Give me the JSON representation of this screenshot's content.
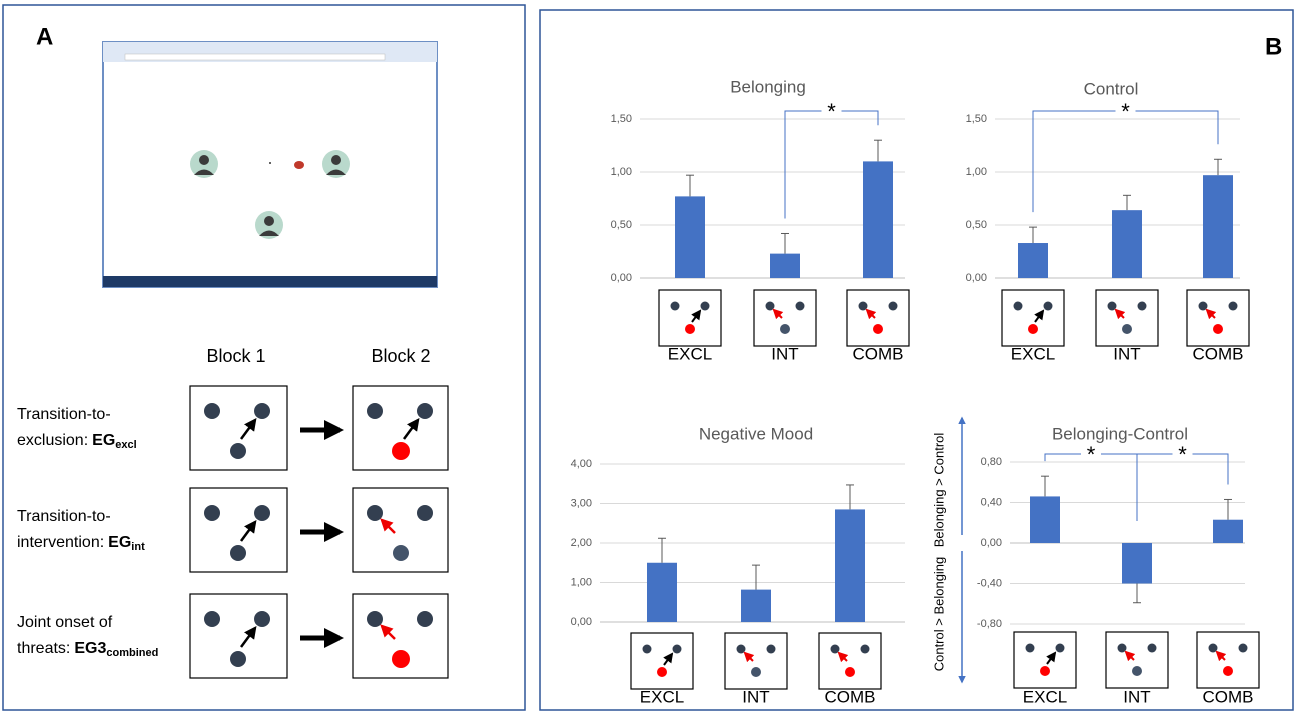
{
  "panel_a": {
    "label": "A",
    "block_headers": [
      "Block 1",
      "Block 2"
    ],
    "conditions": [
      {
        "lines": [
          "Transition-to-",
          "exclusion:"
        ],
        "code": "EG",
        "subscript": "excl"
      },
      {
        "lines": [
          "Transition-to-",
          "intervention:"
        ],
        "code": "EG",
        "subscript": "int"
      },
      {
        "lines": [
          "Joint onset of",
          "threats:"
        ],
        "code": "EG3",
        "subscript": "combined"
      }
    ]
  },
  "panel_b": {
    "label": "B"
  },
  "chart_data": [
    {
      "type": "bar",
      "title": "Belonging",
      "categories": [
        "EXCL",
        "INT",
        "COMB"
      ],
      "values": [
        0.77,
        0.23,
        1.1
      ],
      "errors": [
        0.2,
        0.19,
        0.2
      ],
      "color": "#4472c4",
      "ylim": [
        0,
        1.5
      ],
      "yticks": [
        {
          "value": 0,
          "label": "0,00"
        },
        {
          "value": 0.5,
          "label": "0,50"
        },
        {
          "value": 1,
          "label": "1,00"
        },
        {
          "value": 1.5,
          "label": "1,50"
        }
      ],
      "grid": true,
      "significance": [
        {
          "pair": [
            1,
            2
          ],
          "label": "*"
        }
      ]
    },
    {
      "type": "bar",
      "title": "Control",
      "categories": [
        "EXCL",
        "INT",
        "COMB"
      ],
      "values": [
        0.33,
        0.64,
        0.97
      ],
      "errors": [
        0.15,
        0.14,
        0.15
      ],
      "color": "#4472c4",
      "ylim": [
        0,
        1.5
      ],
      "yticks": [
        {
          "value": 0,
          "label": "0,00"
        },
        {
          "value": 0.5,
          "label": "0,50"
        },
        {
          "value": 1,
          "label": "1,00"
        },
        {
          "value": 1.5,
          "label": "1,50"
        }
      ],
      "grid": true,
      "significance": [
        {
          "pair": [
            0,
            2
          ],
          "label": "*"
        }
      ]
    },
    {
      "type": "bar",
      "title": "Negative Mood",
      "categories": [
        "EXCL",
        "INT",
        "COMB"
      ],
      "values": [
        1.5,
        0.82,
        2.85
      ],
      "errors": [
        0.62,
        0.62,
        0.62
      ],
      "color": "#4472c4",
      "ylim": [
        0,
        4
      ],
      "yticks": [
        {
          "value": 0,
          "label": "0,00"
        },
        {
          "value": 1,
          "label": "1,00"
        },
        {
          "value": 2,
          "label": "2,00"
        },
        {
          "value": 3,
          "label": "3,00"
        },
        {
          "value": 4,
          "label": "4,00"
        }
      ],
      "grid": true,
      "significance": []
    },
    {
      "type": "bar",
      "title": "Belonging-Control",
      "categories": [
        "EXCL",
        "INT",
        "COMB"
      ],
      "values": [
        0.46,
        -0.4,
        0.23
      ],
      "errors": [
        0.2,
        0.19,
        0.2
      ],
      "color": "#4472c4",
      "ylim": [
        -0.8,
        0.8
      ],
      "yticks": [
        {
          "value": -0.8,
          "label": "-0,80"
        },
        {
          "value": -0.4,
          "label": "-0,40"
        },
        {
          "value": 0,
          "label": "0,00"
        },
        {
          "value": 0.4,
          "label": "0,40"
        },
        {
          "value": 0.8,
          "label": "0,80"
        }
      ],
      "grid": true,
      "ylabel_top": "Belonging > Control",
      "ylabel_bottom": "Control > Belonging",
      "significance": [
        {
          "pair": [
            0,
            1
          ],
          "label": "*"
        },
        {
          "pair": [
            1,
            2
          ],
          "label": "*"
        }
      ]
    }
  ]
}
